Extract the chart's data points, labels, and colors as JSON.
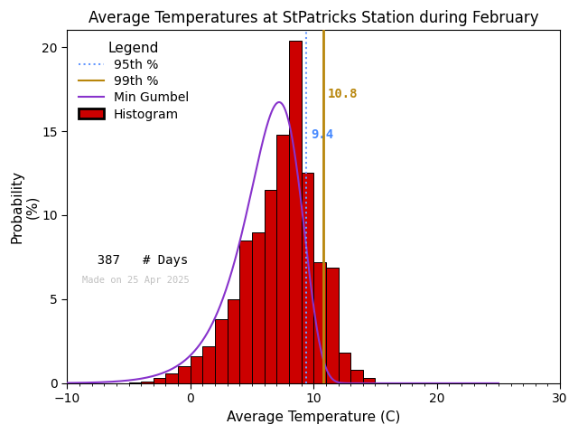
{
  "title": "Average Temperatures at StPatricks Station during February",
  "xlabel": "Average Temperature (C)",
  "ylabel": "Probability\n(%)",
  "xlim": [
    -10,
    30
  ],
  "ylim": [
    0,
    21
  ],
  "yticks": [
    0,
    5,
    10,
    15,
    20
  ],
  "xticks": [
    -10,
    0,
    10,
    20,
    30
  ],
  "bin_edges": [
    -7,
    -6,
    -5,
    -4,
    -3,
    -2,
    -1,
    0,
    1,
    2,
    3,
    4,
    5,
    6,
    7,
    8,
    9,
    10,
    11,
    12,
    13,
    14,
    15,
    16,
    17,
    18,
    19,
    20
  ],
  "bin_values": [
    0.0,
    0.0,
    0.05,
    0.1,
    0.3,
    0.6,
    1.0,
    1.6,
    2.2,
    3.8,
    5.0,
    8.5,
    9.0,
    11.5,
    14.8,
    20.4,
    12.5,
    7.2,
    6.9,
    1.8,
    0.8,
    0.3,
    0.0,
    0.0,
    0.0,
    0.0,
    0.0
  ],
  "pct95_x": 9.4,
  "pct99_x": 10.8,
  "pct95_label": "9.4",
  "pct99_label": "10.8",
  "n_days": 387,
  "gumbel_mu": 7.2,
  "gumbel_beta": 2.2,
  "bar_color": "#cc0000",
  "bar_edgecolor": "#000000",
  "line95_color": "#6699ff",
  "line99_color": "#b8860b",
  "gumbel_color": "#8833cc",
  "background_color": "#ffffff",
  "watermark": "Made on 25 Apr 2025",
  "watermark_color": "#c0c0c0",
  "title_fontsize": 12,
  "axis_fontsize": 11,
  "legend_fontsize": 10,
  "tick_fontsize": 10,
  "pct99_label_color": "#b8860b",
  "pct95_label_color": "#4488ff"
}
